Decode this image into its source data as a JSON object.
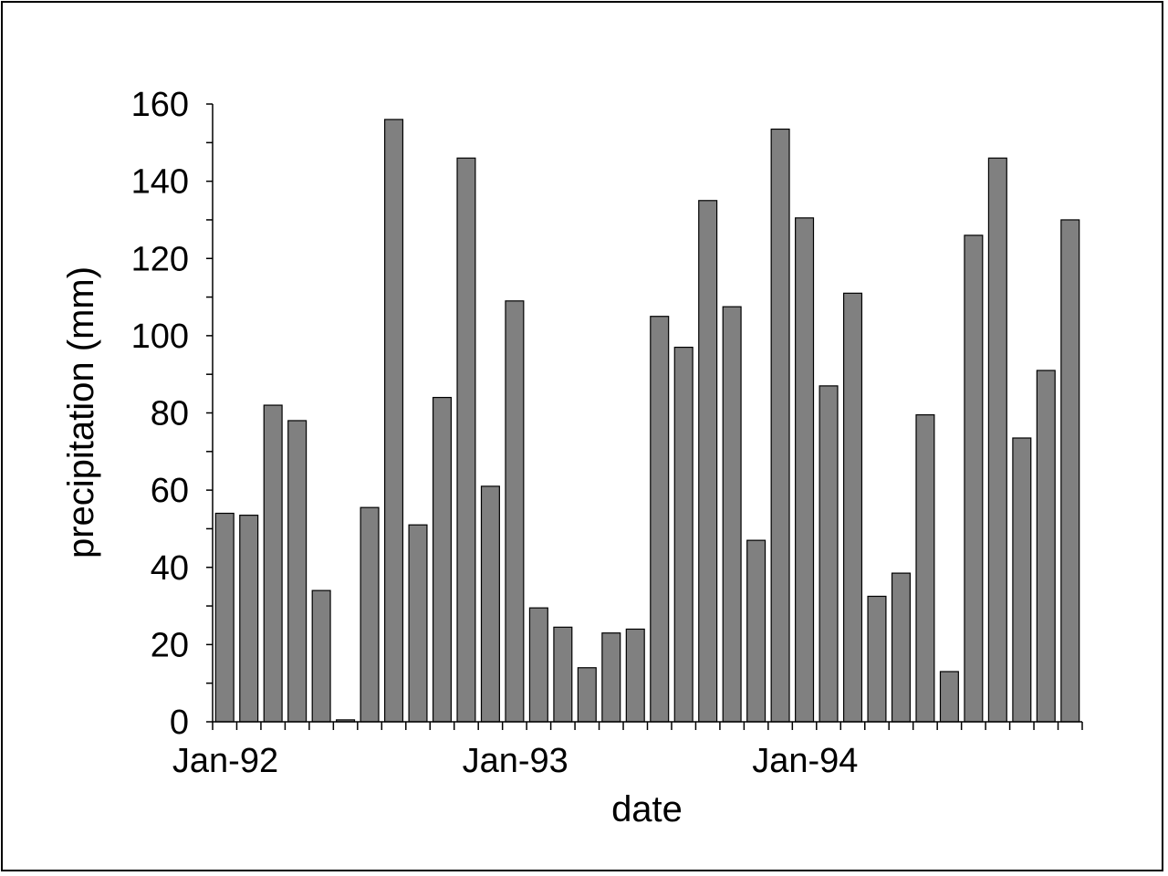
{
  "chart_data": {
    "type": "bar",
    "title": "",
    "xlabel": "date",
    "ylabel": "precipitation (mm)",
    "ylim": [
      0,
      160
    ],
    "yticks": [
      0,
      20,
      40,
      60,
      80,
      100,
      120,
      140,
      160
    ],
    "x_tick_labels": [
      {
        "label": "Jan-92",
        "index": 0
      },
      {
        "label": "Jan-93",
        "index": 12
      },
      {
        "label": "Jan-94",
        "index": 24
      }
    ],
    "categories": [
      "Jan-92",
      "Feb-92",
      "Mar-92",
      "Apr-92",
      "May-92",
      "Jun-92",
      "Jul-92",
      "Aug-92",
      "Sep-92",
      "Oct-92",
      "Nov-92",
      "Dec-92",
      "Jan-93",
      "Feb-93",
      "Mar-93",
      "Apr-93",
      "May-93",
      "Jun-93",
      "Jul-93",
      "Aug-93",
      "Sep-93",
      "Oct-93",
      "Nov-93",
      "Dec-93",
      "Jan-94",
      "Feb-94",
      "Mar-94",
      "Apr-94",
      "May-94",
      "Jun-94",
      "Jul-94",
      "Aug-94",
      "Sep-94",
      "Oct-94",
      "Nov-94",
      "Dec-94"
    ],
    "values": [
      54,
      53.5,
      82,
      78,
      34,
      0.5,
      55.5,
      156,
      51,
      84,
      146,
      61,
      109,
      29.5,
      24.5,
      14,
      23,
      24,
      105,
      97,
      135,
      107.5,
      47,
      153.5,
      130.5,
      87,
      111,
      32.5,
      38.5,
      79.5,
      13,
      126,
      146,
      73.5,
      91,
      130
    ],
    "grid": false,
    "legend": "none",
    "bar_color": "#808080",
    "bar_edge_color": "#000000"
  }
}
